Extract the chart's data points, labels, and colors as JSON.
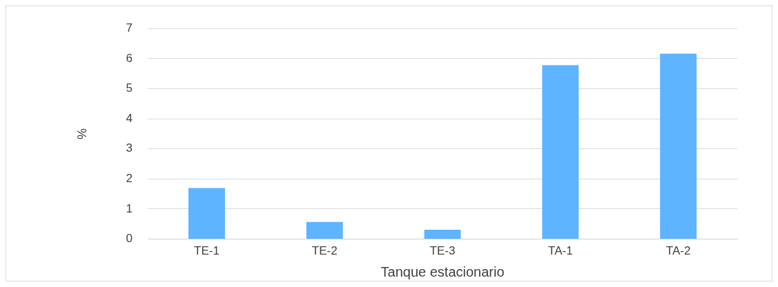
{
  "chart_data": {
    "type": "bar",
    "xlabel": "Tanque estacionario",
    "ylabel": "%",
    "categories": [
      "TE-1",
      "TE-2",
      "TE-3",
      "TA-1",
      "TA-2"
    ],
    "series": [
      {
        "color": "#5eb4ff",
        "values": [
          1.7,
          0.57,
          0.31,
          5.78,
          6.16
        ]
      }
    ],
    "ylim": [
      0,
      7
    ],
    "yticks": [
      0,
      1,
      2,
      3,
      4,
      5,
      6,
      7
    ],
    "grid": "y",
    "legend": false
  }
}
